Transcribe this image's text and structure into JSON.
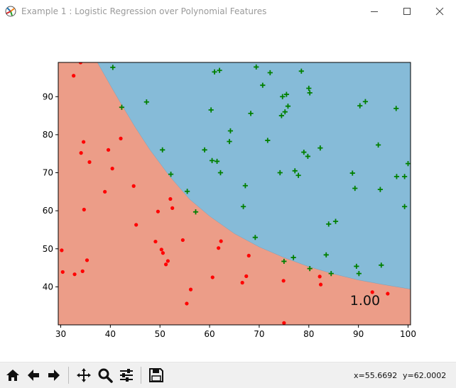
{
  "window": {
    "title": "Example 1 : Logistic Regression over Polynomial Features",
    "controls": [
      "minimize",
      "maximize",
      "close"
    ]
  },
  "colors": {
    "region_pos": "#86bbd8",
    "region_neg": "#ec9d88",
    "marker_pos": "#008000",
    "marker_neg": "#ff0000"
  },
  "toolbar": {
    "buttons": [
      "home-icon",
      "back-arrow-icon",
      "forward-arrow-icon",
      "pan-icon",
      "zoom-icon",
      "configure-subplots-icon",
      "save-icon"
    ],
    "coord_x": "x=55.6692",
    "coord_y": "y=62.0002"
  },
  "chart_data": {
    "type": "scatter",
    "title": "",
    "xlabel": "",
    "ylabel": "",
    "xlim": [
      29.5,
      100.5
    ],
    "ylim": [
      30,
      99
    ],
    "xticks": [
      30,
      40,
      50,
      60,
      70,
      80,
      90,
      100
    ],
    "yticks": [
      40,
      50,
      60,
      70,
      80,
      90
    ],
    "grid": false,
    "annotation": "1.00",
    "boundary": [
      [
        37.4,
        99
      ],
      [
        40,
        93
      ],
      [
        42,
        88.5
      ],
      [
        45,
        82
      ],
      [
        48,
        76
      ],
      [
        52,
        69
      ],
      [
        56,
        63
      ],
      [
        60,
        58.6
      ],
      [
        65,
        54
      ],
      [
        70,
        50.5
      ],
      [
        75,
        47.7
      ],
      [
        80,
        45.3
      ],
      [
        85,
        43.4
      ],
      [
        90,
        41.8
      ],
      [
        95,
        40.6
      ],
      [
        100.5,
        39.4
      ]
    ],
    "series": [
      {
        "marker": "+",
        "points": [
          [
            40.5,
            97.7
          ],
          [
            42.3,
            87.2
          ],
          [
            47.3,
            88.6
          ],
          [
            50.5,
            76.0
          ],
          [
            52.2,
            69.6
          ],
          [
            55.5,
            65.1
          ],
          [
            57.2,
            59.7
          ],
          [
            59.0,
            76.0
          ],
          [
            60.3,
            86.5
          ],
          [
            60.5,
            73.2
          ],
          [
            61.0,
            96.5
          ],
          [
            61.5,
            73.0
          ],
          [
            62.0,
            96.9
          ],
          [
            62.2,
            70.0
          ],
          [
            64.2,
            81.0
          ],
          [
            64.0,
            78.2
          ],
          [
            66.8,
            61.1
          ],
          [
            67.2,
            66.6
          ],
          [
            68.3,
            85.6
          ],
          [
            69.2,
            53.0
          ],
          [
            69.4,
            97.8
          ],
          [
            70.7,
            93.0
          ],
          [
            71.7,
            78.5
          ],
          [
            72.2,
            96.3
          ],
          [
            74.2,
            70.0
          ],
          [
            74.5,
            85.0
          ],
          [
            74.7,
            90.0
          ],
          [
            75.0,
            46.7
          ],
          [
            75.2,
            86.0
          ],
          [
            75.5,
            90.6
          ],
          [
            75.8,
            87.5
          ],
          [
            76.9,
            47.7
          ],
          [
            77.2,
            70.5
          ],
          [
            77.9,
            69.3
          ],
          [
            78.5,
            96.7
          ],
          [
            79.0,
            75.4
          ],
          [
            79.8,
            74.3
          ],
          [
            80.0,
            92.2
          ],
          [
            80.2,
            91.0
          ],
          [
            80.2,
            44.8
          ],
          [
            82.3,
            76.5
          ],
          [
            83.5,
            48.4
          ],
          [
            84.0,
            56.5
          ],
          [
            84.5,
            43.5
          ],
          [
            85.4,
            57.2
          ],
          [
            88.8,
            69.9
          ],
          [
            89.3,
            65.9
          ],
          [
            89.6,
            45.4
          ],
          [
            90.1,
            43.5
          ],
          [
            90.3,
            87.6
          ],
          [
            91.4,
            88.7
          ],
          [
            94.0,
            77.3
          ],
          [
            94.4,
            65.6
          ],
          [
            94.6,
            45.7
          ],
          [
            97.6,
            86.9
          ],
          [
            97.7,
            69.0
          ],
          [
            99.3,
            69.0
          ],
          [
            99.3,
            61.1
          ],
          [
            100.0,
            72.4
          ]
        ]
      },
      {
        "marker": "o",
        "points": [
          [
            30.2,
            49.6
          ],
          [
            30.4,
            43.9
          ],
          [
            32.6,
            95.5
          ],
          [
            32.8,
            43.3
          ],
          [
            34.0,
            99.0
          ],
          [
            34.1,
            75.2
          ],
          [
            34.4,
            44.1
          ],
          [
            34.6,
            78.1
          ],
          [
            34.7,
            60.3
          ],
          [
            35.3,
            47.0
          ],
          [
            35.8,
            72.8
          ],
          [
            38.9,
            65.0
          ],
          [
            39.6,
            76.0
          ],
          [
            40.4,
            71.1
          ],
          [
            42.1,
            79.0
          ],
          [
            44.7,
            66.5
          ],
          [
            45.2,
            56.3
          ],
          [
            49.1,
            51.9
          ],
          [
            49.6,
            59.8
          ],
          [
            50.3,
            49.8
          ],
          [
            50.6,
            48.9
          ],
          [
            51.2,
            45.9
          ],
          [
            51.6,
            46.8
          ],
          [
            52.1,
            63.1
          ],
          [
            52.5,
            60.7
          ],
          [
            54.6,
            52.3
          ],
          [
            55.4,
            35.6
          ],
          [
            56.2,
            39.3
          ],
          [
            60.6,
            42.5
          ],
          [
            61.8,
            50.2
          ],
          [
            62.3,
            52.0
          ],
          [
            66.6,
            41.1
          ],
          [
            67.4,
            42.8
          ],
          [
            67.9,
            48.2
          ],
          [
            74.9,
            41.6
          ],
          [
            75.0,
            30.5
          ],
          [
            82.2,
            42.7
          ],
          [
            82.4,
            40.6
          ],
          [
            92.8,
            38.6
          ],
          [
            95.9,
            38.2
          ]
        ]
      }
    ]
  }
}
